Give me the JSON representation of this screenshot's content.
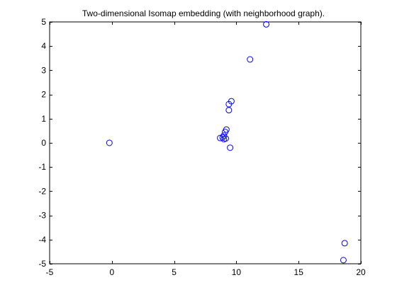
{
  "colors": {
    "background": "#ffffff",
    "axis": "#000000",
    "marker": "#0000ff",
    "text": "#000000"
  },
  "chart_data": {
    "type": "scatter",
    "title": "Two-dimensional Isomap embedding (with neighborhood graph).",
    "xlabel": "",
    "ylabel": "",
    "xlim": [
      -5,
      20
    ],
    "ylim": [
      -5,
      5
    ],
    "x_ticks": [
      -5,
      0,
      5,
      10,
      15,
      20
    ],
    "y_ticks": [
      -5,
      -4,
      -3,
      -2,
      -1,
      0,
      1,
      2,
      3,
      4,
      5
    ],
    "x_tick_labels": [
      "-5",
      "0",
      "5",
      "10",
      "15",
      "20"
    ],
    "y_tick_labels": [
      "-5",
      "-4",
      "-3",
      "-2",
      "-1",
      "0",
      "1",
      "2",
      "3",
      "4",
      "5"
    ],
    "grid": false,
    "legend": "none",
    "marker": "open-circle",
    "series": [
      {
        "points": [
          {
            "x": -0.2,
            "y": 0.0
          },
          {
            "x": 12.4,
            "y": 4.9
          },
          {
            "x": 11.1,
            "y": 3.45
          },
          {
            "x": 9.6,
            "y": 1.72
          },
          {
            "x": 9.4,
            "y": 1.6
          },
          {
            "x": 9.4,
            "y": 1.35
          },
          {
            "x": 9.2,
            "y": 0.55
          },
          {
            "x": 9.1,
            "y": 0.45
          },
          {
            "x": 9.0,
            "y": 0.3
          },
          {
            "x": 8.9,
            "y": 0.22
          },
          {
            "x": 8.7,
            "y": 0.2
          },
          {
            "x": 9.0,
            "y": 0.15
          },
          {
            "x": 9.15,
            "y": 0.18
          },
          {
            "x": 9.5,
            "y": -0.2
          },
          {
            "x": 18.7,
            "y": -4.15
          },
          {
            "x": 18.6,
            "y": -4.85
          }
        ]
      }
    ]
  }
}
